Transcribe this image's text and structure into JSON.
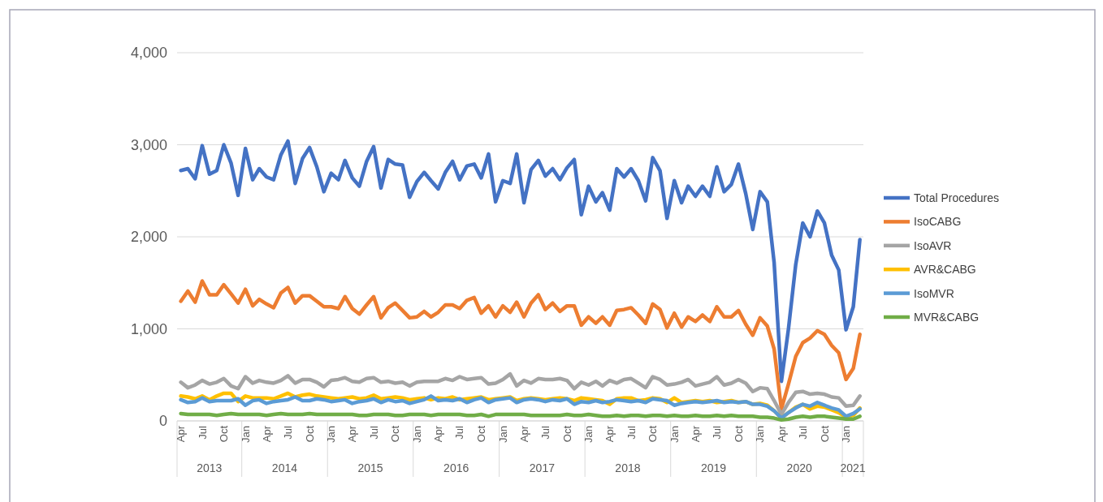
{
  "chart_data": {
    "type": "line",
    "x": [
      "2013-04",
      "2013-05",
      "2013-06",
      "2013-07",
      "2013-08",
      "2013-09",
      "2013-10",
      "2013-11",
      "2013-12",
      "2014-01",
      "2014-02",
      "2014-03",
      "2014-04",
      "2014-05",
      "2014-06",
      "2014-07",
      "2014-08",
      "2014-09",
      "2014-10",
      "2014-11",
      "2014-12",
      "2015-01",
      "2015-02",
      "2015-03",
      "2015-04",
      "2015-05",
      "2015-06",
      "2015-07",
      "2015-08",
      "2015-09",
      "2015-10",
      "2015-11",
      "2015-12",
      "2016-01",
      "2016-02",
      "2016-03",
      "2016-04",
      "2016-05",
      "2016-06",
      "2016-07",
      "2016-08",
      "2016-09",
      "2016-10",
      "2016-11",
      "2016-12",
      "2017-01",
      "2017-02",
      "2017-03",
      "2017-04",
      "2017-05",
      "2017-06",
      "2017-07",
      "2017-08",
      "2017-09",
      "2017-10",
      "2017-11",
      "2017-12",
      "2018-01",
      "2018-02",
      "2018-03",
      "2018-04",
      "2018-05",
      "2018-06",
      "2018-07",
      "2018-08",
      "2018-09",
      "2018-10",
      "2018-11",
      "2018-12",
      "2019-01",
      "2019-02",
      "2019-03",
      "2019-04",
      "2019-05",
      "2019-06",
      "2019-07",
      "2019-08",
      "2019-09",
      "2019-10",
      "2019-11",
      "2019-12",
      "2020-01",
      "2020-02",
      "2020-03",
      "2020-04",
      "2020-05",
      "2020-06",
      "2020-07",
      "2020-08",
      "2020-09",
      "2020-10",
      "2020-11",
      "2020-12",
      "2021-01",
      "2021-02",
      "2021-03"
    ],
    "series": [
      {
        "name": "Total Procedures",
        "color": "#4472c4",
        "values": [
          2720,
          2740,
          2630,
          2990,
          2680,
          2720,
          3000,
          2800,
          2450,
          2960,
          2620,
          2740,
          2650,
          2620,
          2890,
          3040,
          2580,
          2850,
          2970,
          2760,
          2490,
          2690,
          2620,
          2830,
          2640,
          2550,
          2820,
          2980,
          2530,
          2840,
          2790,
          2780,
          2430,
          2600,
          2700,
          2610,
          2520,
          2700,
          2820,
          2620,
          2770,
          2790,
          2640,
          2900,
          2380,
          2610,
          2580,
          2900,
          2370,
          2730,
          2830,
          2660,
          2740,
          2620,
          2750,
          2840,
          2240,
          2550,
          2380,
          2480,
          2290,
          2740,
          2650,
          2740,
          2610,
          2390,
          2860,
          2720,
          2200,
          2610,
          2370,
          2550,
          2440,
          2550,
          2440,
          2760,
          2490,
          2570,
          2790,
          2470,
          2080,
          2490,
          2380,
          1720,
          430,
          1000,
          1700,
          2150,
          2000,
          2280,
          2150,
          1800,
          1640,
          990,
          1240,
          1970
        ]
      },
      {
        "name": "IsoCABG",
        "color": "#ed7d31",
        "values": [
          1300,
          1410,
          1290,
          1520,
          1370,
          1370,
          1480,
          1380,
          1280,
          1430,
          1250,
          1320,
          1270,
          1230,
          1390,
          1450,
          1280,
          1360,
          1360,
          1300,
          1240,
          1240,
          1220,
          1350,
          1220,
          1160,
          1260,
          1350,
          1120,
          1230,
          1280,
          1200,
          1120,
          1130,
          1190,
          1130,
          1180,
          1260,
          1260,
          1220,
          1310,
          1340,
          1170,
          1250,
          1130,
          1250,
          1180,
          1290,
          1130,
          1280,
          1370,
          1210,
          1280,
          1190,
          1250,
          1250,
          1040,
          1130,
          1060,
          1130,
          1040,
          1200,
          1210,
          1230,
          1150,
          1060,
          1270,
          1210,
          1010,
          1170,
          1020,
          1130,
          1080,
          1150,
          1080,
          1240,
          1130,
          1130,
          1200,
          1050,
          930,
          1120,
          1030,
          780,
          130,
          400,
          700,
          850,
          900,
          980,
          940,
          820,
          740,
          450,
          570,
          940
        ]
      },
      {
        "name": "IsoAVR",
        "color": "#a5a5a5",
        "values": [
          420,
          360,
          390,
          440,
          400,
          420,
          460,
          380,
          350,
          480,
          410,
          440,
          420,
          410,
          440,
          490,
          410,
          450,
          450,
          420,
          370,
          440,
          450,
          470,
          430,
          420,
          460,
          470,
          420,
          430,
          410,
          420,
          380,
          420,
          430,
          430,
          430,
          460,
          440,
          480,
          450,
          460,
          470,
          400,
          410,
          450,
          510,
          380,
          440,
          410,
          460,
          450,
          450,
          460,
          440,
          350,
          420,
          390,
          430,
          380,
          440,
          410,
          450,
          460,
          410,
          360,
          480,
          450,
          390,
          400,
          420,
          450,
          380,
          400,
          420,
          480,
          390,
          410,
          450,
          410,
          320,
          360,
          350,
          220,
          70,
          200,
          310,
          320,
          290,
          300,
          290,
          260,
          250,
          160,
          170,
          270
        ]
      },
      {
        "name": "AVR&CABG",
        "color": "#ffc000",
        "values": [
          270,
          260,
          240,
          270,
          230,
          270,
          300,
          300,
          210,
          270,
          250,
          250,
          250,
          240,
          270,
          300,
          260,
          280,
          290,
          270,
          260,
          250,
          240,
          250,
          260,
          240,
          250,
          280,
          240,
          250,
          260,
          250,
          230,
          240,
          250,
          230,
          250,
          240,
          260,
          230,
          240,
          250,
          260,
          230,
          240,
          250,
          260,
          220,
          240,
          250,
          240,
          230,
          240,
          250,
          240,
          220,
          250,
          240,
          230,
          220,
          180,
          240,
          250,
          250,
          220,
          230,
          250,
          240,
          200,
          250,
          200,
          210,
          220,
          210,
          220,
          200,
          210,
          220,
          200,
          210,
          180,
          190,
          170,
          110,
          30,
          90,
          150,
          180,
          130,
          160,
          150,
          120,
          90,
          40,
          60,
          140
        ]
      },
      {
        "name": "IsoMVR",
        "color": "#5b9bd5",
        "values": [
          230,
          200,
          210,
          250,
          210,
          220,
          220,
          220,
          240,
          170,
          220,
          230,
          190,
          210,
          220,
          230,
          260,
          220,
          220,
          240,
          230,
          210,
          220,
          230,
          190,
          210,
          220,
          240,
          200,
          230,
          210,
          220,
          190,
          210,
          230,
          270,
          220,
          230,
          220,
          240,
          200,
          230,
          250,
          200,
          230,
          240,
          250,
          200,
          230,
          240,
          230,
          210,
          230,
          220,
          240,
          180,
          210,
          200,
          220,
          200,
          210,
          230,
          220,
          210,
          220,
          200,
          240,
          230,
          220,
          170,
          190,
          200,
          210,
          200,
          210,
          220,
          200,
          210,
          200,
          210,
          180,
          180,
          160,
          110,
          30,
          90,
          140,
          180,
          160,
          200,
          170,
          140,
          120,
          50,
          80,
          130
        ]
      },
      {
        "name": "MVR&CABG",
        "color": "#70ad47",
        "values": [
          80,
          70,
          70,
          70,
          70,
          60,
          70,
          80,
          70,
          70,
          70,
          70,
          60,
          70,
          80,
          70,
          70,
          70,
          80,
          70,
          70,
          70,
          70,
          70,
          70,
          60,
          60,
          70,
          70,
          70,
          60,
          60,
          70,
          70,
          70,
          60,
          70,
          70,
          70,
          70,
          60,
          60,
          70,
          50,
          70,
          70,
          70,
          70,
          70,
          60,
          60,
          60,
          60,
          60,
          70,
          60,
          60,
          70,
          60,
          50,
          50,
          60,
          50,
          60,
          60,
          50,
          60,
          60,
          50,
          60,
          50,
          50,
          60,
          50,
          50,
          60,
          50,
          60,
          50,
          50,
          50,
          40,
          40,
          30,
          10,
          20,
          40,
          50,
          40,
          50,
          50,
          40,
          30,
          20,
          20,
          50
        ]
      }
    ],
    "xlim": [
      "2013-03-16",
      "2021-03-16"
    ],
    "xticks": [
      {
        "value": "2013-04",
        "label": "Apr"
      },
      {
        "value": "2013-07",
        "label": "Jul"
      },
      {
        "value": "2013-10",
        "label": "Oct"
      },
      {
        "value": "2014-01",
        "label": "Jan"
      },
      {
        "value": "2014-04",
        "label": "Apr"
      },
      {
        "value": "2014-07",
        "label": "Jul"
      },
      {
        "value": "2014-10",
        "label": "Oct"
      },
      {
        "value": "2015-01",
        "label": "Jan"
      },
      {
        "value": "2015-04",
        "label": "Apr"
      },
      {
        "value": "2015-07",
        "label": "Jul"
      },
      {
        "value": "2015-10",
        "label": "Oct"
      },
      {
        "value": "2016-01",
        "label": "Jan"
      },
      {
        "value": "2016-04",
        "label": "Apr"
      },
      {
        "value": "2016-07",
        "label": "Jul"
      },
      {
        "value": "2016-10",
        "label": "Oct"
      },
      {
        "value": "2017-01",
        "label": "Jan"
      },
      {
        "value": "2017-04",
        "label": "Apr"
      },
      {
        "value": "2017-07",
        "label": "Jul"
      },
      {
        "value": "2017-10",
        "label": "Oct"
      },
      {
        "value": "2018-01",
        "label": "Jan"
      },
      {
        "value": "2018-04",
        "label": "Apr"
      },
      {
        "value": "2018-07",
        "label": "Jul"
      },
      {
        "value": "2018-10",
        "label": "Oct"
      },
      {
        "value": "2019-01",
        "label": "Jan"
      },
      {
        "value": "2019-04",
        "label": "Apr"
      },
      {
        "value": "2019-07",
        "label": "Jul"
      },
      {
        "value": "2019-10",
        "label": "Oct"
      },
      {
        "value": "2020-01",
        "label": "Jan"
      },
      {
        "value": "2020-04",
        "label": "Apr"
      },
      {
        "value": "2020-07",
        "label": "Jul"
      },
      {
        "value": "2020-10",
        "label": "Oct"
      },
      {
        "value": "2021-01",
        "label": "Jan"
      }
    ],
    "annotations": [
      "2013",
      "2014",
      "2015",
      "2016",
      "2017",
      "2018",
      "2019",
      "2020",
      "2021"
    ],
    "ylim": [
      0,
      4000
    ],
    "yticks": [
      {
        "value": 0,
        "label": "0"
      },
      {
        "value": 1000,
        "label": "1,000"
      },
      {
        "value": 2000,
        "label": "2,000"
      },
      {
        "value": 3000,
        "label": "3,000"
      },
      {
        "value": 4000,
        "label": "4,000"
      }
    ],
    "grid": "y",
    "legend": "right",
    "marker": "none",
    "line_style": "solid"
  }
}
